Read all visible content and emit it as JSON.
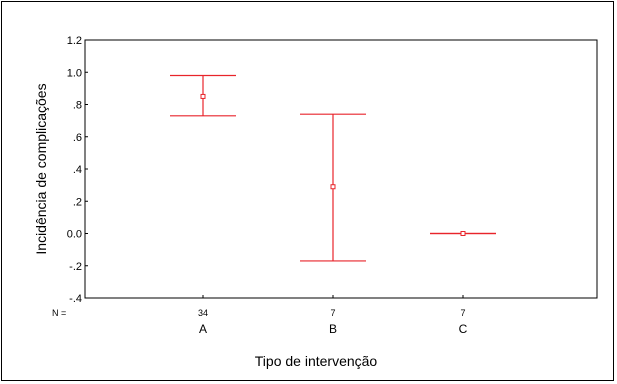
{
  "chart_data": {
    "type": "errorbar",
    "xlabel": "Tipo de intervenção",
    "ylabel": "Incidência de complicações",
    "ylim": [
      -0.4,
      1.2
    ],
    "y_ticks": [
      -0.4,
      -0.2,
      0.0,
      0.2,
      0.4,
      0.6,
      0.8,
      1.0,
      1.2
    ],
    "y_tick_labels": [
      "-.4",
      "-.2",
      "0.0",
      ".2",
      ".4",
      ".6",
      ".8",
      "1.0",
      "1.2"
    ],
    "n_prefix": "N =",
    "categories": [
      "A",
      "B",
      "C"
    ],
    "n": [
      "34",
      "7",
      "7"
    ],
    "mean": [
      0.85,
      0.29,
      0.0
    ],
    "lower": [
      0.73,
      -0.17,
      0.0
    ],
    "upper": [
      0.98,
      0.74,
      0.0
    ],
    "color": "#e8242b",
    "grid": false
  }
}
